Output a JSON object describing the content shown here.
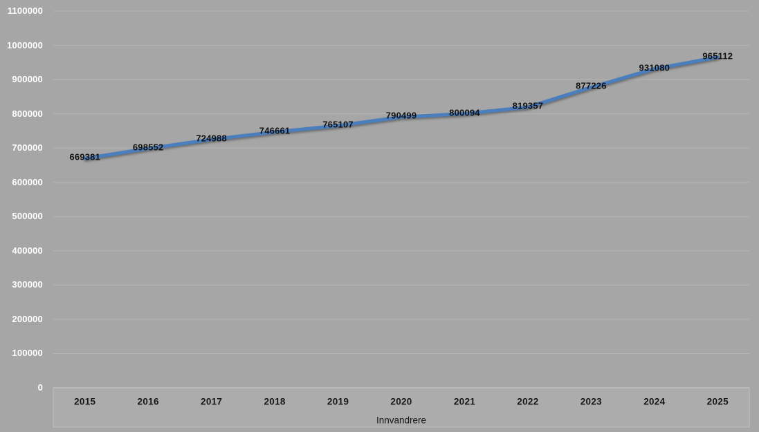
{
  "chart_data": {
    "type": "line",
    "title": "",
    "categories": [
      "2015",
      "2016",
      "2017",
      "2018",
      "2019",
      "2020",
      "2021",
      "2022",
      "2023",
      "2024",
      "2025"
    ],
    "series": [
      {
        "name": "Innvandrere",
        "values": [
          669381,
          698552,
          724988,
          746661,
          765107,
          790499,
          800094,
          819357,
          877226,
          931080,
          965112
        ]
      }
    ],
    "data_labels": [
      "669381",
      "698552",
      "724988",
      "746661",
      "765107",
      "790499",
      "800094",
      "819357",
      "877226",
      "931080",
      "965112"
    ],
    "xlabel": "Innvandrere",
    "ylabel": "",
    "ylim": [
      0,
      1100000
    ],
    "ytick_step": 100000,
    "ytick_labels": [
      "0",
      "100000",
      "200000",
      "300000",
      "400000",
      "500000",
      "600000",
      "700000",
      "800000",
      "900000",
      "1000000",
      "1100000"
    ],
    "grid": true,
    "legend": "none"
  },
  "colors": {
    "background": "#a6a6a6",
    "axis_strip_fill": "rgba(255,255,255,0.07)",
    "axis_strip_border": "rgba(255,255,255,0.28)",
    "gridline": "#b5b5b5",
    "line": "#4a7ebd",
    "y_tick_text": "#ffffff",
    "x_tick_text": "#161616",
    "data_label_text": "#111111",
    "axis_title_text": "#161616"
  }
}
